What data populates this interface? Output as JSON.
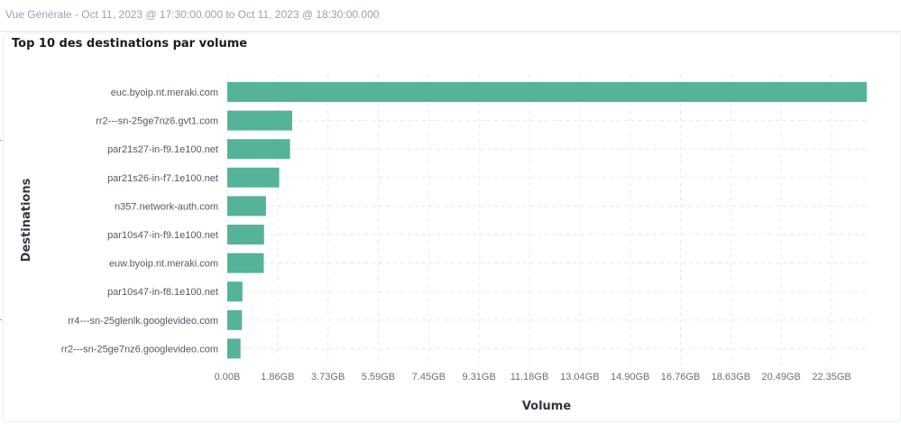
{
  "header": {
    "time_range": "Vue Générale - Oct 11, 2023 @ 17:30:00.000 to Oct 11, 2023 @ 18:30:00.000"
  },
  "panel": {
    "title": "Top 10 des destinations par volume"
  },
  "colors": {
    "bar": "#54b399",
    "grid": "#e6e8ec"
  },
  "chart_data": {
    "type": "bar",
    "orientation": "horizontal",
    "title": "Top 10 des destinations par volume",
    "xlabel": "Volume",
    "ylabel": "Destinations",
    "unit": "GB",
    "categories": [
      "euc.byoip.nt.meraki.com",
      "rr2---sn-25ge7nz6.gvt1.com",
      "par21s27-in-f9.1e100.net",
      "par21s26-in-f7.1e100.net",
      "n357.network-auth.com",
      "par10s47-in-f9.1e100.net",
      "euw.byoip.nt.meraki.com",
      "par10s47-in-f8.1e100.net",
      "rr4---sn-25glenlk.googlevideo.com",
      "rr2---sn-25ge7nz6.googlevideo.com"
    ],
    "values": [
      23.65,
      2.4,
      2.32,
      1.92,
      1.43,
      1.36,
      1.35,
      0.56,
      0.54,
      0.49
    ],
    "xlim": [
      0,
      23.65
    ],
    "x_ticks": [
      0,
      1.8625,
      3.725,
      5.5875,
      7.45,
      9.3125,
      11.175,
      13.0375,
      14.9,
      16.7625,
      18.625,
      20.4875,
      22.35
    ],
    "x_tick_labels": [
      "0.00B",
      "1.86GB",
      "3.73GB",
      "5.59GB",
      "7.45GB",
      "9.31GB",
      "11.18GB",
      "13.04GB",
      "14.90GB",
      "16.76GB",
      "18.63GB",
      "20.49GB",
      "22.35GB"
    ],
    "grid": true,
    "grid_style": "dashed",
    "legend": "none"
  }
}
